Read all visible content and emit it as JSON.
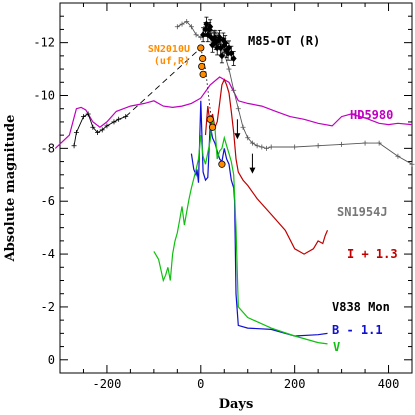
{
  "chart_data": {
    "type": "line",
    "xlabel": "Days",
    "ylabel": "Absolute magnitude",
    "xlim": [
      -300,
      450
    ],
    "ylim": [
      0.5,
      -13.5
    ],
    "y_inverted": true,
    "x_ticks": [
      -200,
      0,
      200,
      400
    ],
    "y_ticks": [
      0,
      -2,
      -4,
      -6,
      -8,
      -10,
      -12
    ],
    "grid": false,
    "series": [
      {
        "name": "HD5980",
        "color": "#c000c0",
        "style": "line",
        "x": [
          -310,
          -280,
          -265,
          -255,
          -245,
          -230,
          -215,
          -200,
          -180,
          -150,
          -120,
          -100,
          -80,
          -60,
          -40,
          -20,
          0,
          20,
          40,
          60,
          80,
          100,
          130,
          160,
          190,
          220,
          250,
          280,
          300,
          320,
          350,
          380,
          400,
          420,
          450
        ],
        "y": [
          -8.0,
          -8.5,
          -9.5,
          -9.55,
          -9.45,
          -9.0,
          -8.8,
          -9.0,
          -9.4,
          -9.6,
          -9.7,
          -9.8,
          -9.6,
          -9.55,
          -9.6,
          -9.7,
          -9.9,
          -10.4,
          -10.7,
          -10.5,
          -9.8,
          -9.7,
          -9.6,
          -9.4,
          -9.2,
          -9.1,
          -8.95,
          -8.85,
          -9.2,
          -9.3,
          -9.15,
          -8.95,
          -8.9,
          -8.95,
          -8.9
        ]
      },
      {
        "name": "SN1954J",
        "color": "#000000",
        "style": "line-plus",
        "x": [
          -270,
          -265,
          -250,
          -240,
          -230,
          -220,
          -210,
          -200,
          -185,
          -175,
          -160
        ],
        "y": [
          -8.1,
          -8.6,
          -9.2,
          -9.3,
          -8.8,
          -8.6,
          -8.7,
          -8.85,
          -9.0,
          -9.1,
          -9.2
        ]
      },
      {
        "name": "SN1954J",
        "color": "#555555",
        "style": "line-plus",
        "x": [
          -50,
          -40,
          -30,
          -20,
          -10,
          0,
          10,
          20,
          30,
          40,
          50,
          60,
          70,
          80,
          90,
          100,
          110,
          120,
          130,
          140,
          150,
          200,
          250,
          300,
          350,
          380,
          420,
          450
        ],
        "y": [
          -12.6,
          -12.7,
          -12.8,
          -12.6,
          -12.3,
          -12.2,
          -12.6,
          -12.5,
          -12.4,
          -12.2,
          -11.6,
          -11.0,
          -10.2,
          -9.5,
          -8.8,
          -8.4,
          -8.2,
          -8.1,
          -8.05,
          -8.0,
          -8.05,
          -8.05,
          -8.1,
          -8.15,
          -8.2,
          -8.2,
          -7.7,
          -7.4
        ]
      },
      {
        "name": "I + 1.3",
        "color": "#c00000",
        "style": "line",
        "x": [
          10,
          15,
          20,
          25,
          30,
          35,
          40,
          45,
          50,
          55,
          60,
          65,
          70,
          75,
          80,
          90,
          100,
          120,
          150,
          180,
          200,
          220,
          240,
          250,
          260,
          265,
          270
        ],
        "y": [
          -8.5,
          -9.6,
          -8.9,
          -9.3,
          -8.8,
          -9.0,
          -9.7,
          -10.4,
          -10.6,
          -10.4,
          -10.1,
          -9.4,
          -8.6,
          -7.6,
          -7.1,
          -6.8,
          -6.6,
          -6.1,
          -5.5,
          -4.9,
          -4.2,
          -4.0,
          -4.2,
          -4.5,
          -4.4,
          -4.7,
          -4.9
        ]
      },
      {
        "name": "B - 1.1",
        "color": "#1010d0",
        "style": "line",
        "x": [
          -20,
          -15,
          -10,
          -8,
          -5,
          0,
          5,
          10,
          15,
          20,
          25,
          30,
          35,
          40,
          45,
          50,
          55,
          60,
          65,
          70,
          72,
          75,
          80,
          100,
          150,
          200,
          250,
          270
        ],
        "y": [
          -7.8,
          -7.2,
          -7.0,
          -7.2,
          -6.7,
          -9.8,
          -7.1,
          -6.8,
          -6.9,
          -8.9,
          -8.4,
          -8.2,
          -7.9,
          -7.6,
          -7.5,
          -8.0,
          -7.6,
          -7.4,
          -6.8,
          -6.5,
          -6.0,
          -2.5,
          -1.3,
          -1.2,
          -1.15,
          -0.9,
          -0.95,
          -1.0
        ]
      },
      {
        "name": "V",
        "color": "#10c010",
        "style": "line",
        "x": [
          -100,
          -90,
          -80,
          -75,
          -70,
          -65,
          -60,
          -55,
          -50,
          -45,
          -40,
          -35,
          -30,
          -25,
          -20,
          -10,
          -5,
          0,
          5,
          10,
          20,
          25,
          30,
          35,
          40,
          45,
          50,
          55,
          60,
          65,
          70,
          75,
          80,
          100,
          150,
          200,
          250,
          270
        ],
        "y": [
          -4.1,
          -3.8,
          -3.0,
          -3.2,
          -3.5,
          -3.0,
          -4.0,
          -4.5,
          -4.8,
          -5.3,
          -5.8,
          -5.1,
          -5.6,
          -6.1,
          -6.5,
          -7.2,
          -7.6,
          -8.5,
          -7.7,
          -7.4,
          -8.3,
          -9.1,
          -8.8,
          -7.6,
          -7.9,
          -8.0,
          -8.4,
          -8.1,
          -7.8,
          -7.5,
          -7.0,
          -5.0,
          -2.0,
          -1.6,
          -1.2,
          -0.9,
          -0.65,
          -0.6
        ]
      },
      {
        "name": "",
        "color": "#000000",
        "style": "dashed",
        "x": [
          -160,
          0
        ],
        "y": [
          -9.2,
          -11.8
        ]
      },
      {
        "name": "",
        "color": "#000000",
        "style": "dotted",
        "x": [
          0,
          10,
          25
        ],
        "y": [
          -11.8,
          -11.0,
          -8.7
        ]
      }
    ],
    "m85_points": {
      "name": "M85-OT (R)",
      "color": "#000000",
      "x": [
        5,
        10,
        12,
        15,
        18,
        20,
        22,
        25,
        28,
        30,
        32,
        35,
        38,
        40,
        42,
        45,
        48,
        50,
        52,
        55,
        58,
        60,
        65,
        70
      ],
      "y": [
        -12.3,
        -12.5,
        -12.7,
        -12.3,
        -12.5,
        -12.6,
        -12.2,
        -11.9,
        -12.1,
        -12.2,
        -12.0,
        -11.8,
        -12.1,
        -12.2,
        -11.8,
        -11.5,
        -12.1,
        -11.9,
        -12.0,
        -11.7,
        -11.6,
        -11.8,
        -11.6,
        -11.4
      ]
    },
    "sn2010u_points": {
      "name": "SN2010U (uf,R)",
      "color": "#ff8c00",
      "x": [
        0,
        2,
        4,
        5,
        20,
        25,
        45
      ],
      "y": [
        -11.8,
        -11.1,
        -11.4,
        -10.8,
        -9.1,
        -8.8,
        -7.4
      ]
    },
    "sn1954j_arrows": {
      "x": [
        78,
        110
      ],
      "y": [
        -9.1,
        -7.8
      ]
    },
    "labels": {
      "m85": "M85-OT (R)",
      "sn2010u_line1": "SN2010U",
      "sn2010u_line2": "(uf,R)",
      "hd5980": "HD5980",
      "sn1954j": "SN1954J",
      "i_band": "I + 1.3",
      "v838": "V838 Mon",
      "b_band": "B - 1.1",
      "v_band": "V"
    }
  }
}
